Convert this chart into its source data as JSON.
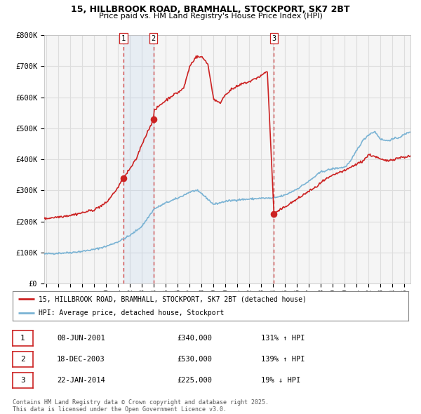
{
  "title_line1": "15, HILLBROOK ROAD, BRAMHALL, STOCKPORT, SK7 2BT",
  "title_line2": "Price paid vs. HM Land Registry's House Price Index (HPI)",
  "ylim": [
    0,
    800000
  ],
  "xlim_start": 1994.8,
  "xlim_end": 2025.5,
  "hpi_color": "#7ab3d4",
  "price_color": "#cc2222",
  "background_color": "#ffffff",
  "plot_bg_color": "#f5f5f5",
  "grid_color": "#dddddd",
  "sale_dates": [
    2001.44,
    2003.96,
    2014.055
  ],
  "sale_prices": [
    340000,
    530000,
    225000
  ],
  "sale_labels": [
    "1",
    "2",
    "3"
  ],
  "legend_line1": "15, HILLBROOK ROAD, BRAMHALL, STOCKPORT, SK7 2BT (detached house)",
  "legend_line2": "HPI: Average price, detached house, Stockport",
  "table_rows": [
    {
      "num": "1",
      "date": "08-JUN-2001",
      "price": "£340,000",
      "pct": "131% ↑ HPI"
    },
    {
      "num": "2",
      "date": "18-DEC-2003",
      "price": "£530,000",
      "pct": "139% ↑ HPI"
    },
    {
      "num": "3",
      "date": "22-JAN-2014",
      "price": "£225,000",
      "pct": "19% ↓ HPI"
    }
  ],
  "footer": "Contains HM Land Registry data © Crown copyright and database right 2025.\nThis data is licensed under the Open Government Licence v3.0.",
  "ytick_labels": [
    "£0",
    "£100K",
    "£200K",
    "£300K",
    "£400K",
    "£500K",
    "£600K",
    "£700K",
    "£800K"
  ],
  "ytick_values": [
    0,
    100000,
    200000,
    300000,
    400000,
    500000,
    600000,
    700000,
    800000
  ]
}
